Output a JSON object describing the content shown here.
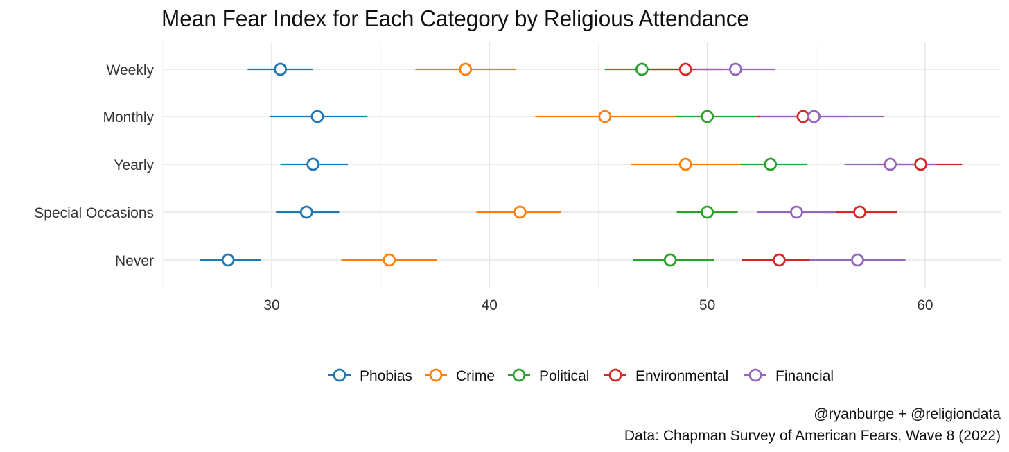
{
  "chart_data": {
    "type": "scatter",
    "subtype": "dot-with-error-bars",
    "title": "Mean Fear Index for Each Category by Religious Attendance",
    "xlabel": "",
    "ylabel": "",
    "xlim": [
      25,
      63.5
    ],
    "xticks": [
      30,
      40,
      50,
      60
    ],
    "grid": true,
    "legend_position": "bottom",
    "categories": [
      "Weekly",
      "Monthly",
      "Yearly",
      "Special Occasions",
      "Never"
    ],
    "series": [
      {
        "name": "Phobias",
        "color": "#1f77b4",
        "values": [
          30.4,
          32.1,
          31.9,
          31.6,
          28.0
        ],
        "ci": [
          [
            28.9,
            31.9
          ],
          [
            29.9,
            34.4
          ],
          [
            30.4,
            33.5
          ],
          [
            30.2,
            33.1
          ],
          [
            26.7,
            29.5
          ]
        ]
      },
      {
        "name": "Crime",
        "color": "#ff7f0e",
        "values": [
          38.9,
          45.3,
          49.0,
          41.4,
          35.4
        ],
        "ci": [
          [
            36.6,
            41.2
          ],
          [
            42.1,
            48.5
          ],
          [
            46.5,
            51.5
          ],
          [
            39.4,
            43.3
          ],
          [
            33.2,
            37.6
          ]
        ]
      },
      {
        "name": "Political",
        "color": "#2ca02c",
        "values": [
          47.0,
          50.0,
          52.9,
          50.0,
          48.3
        ],
        "ci": [
          [
            45.3,
            48.7
          ],
          [
            48.5,
            52.4
          ],
          [
            51.5,
            54.6
          ],
          [
            48.6,
            51.4
          ],
          [
            46.6,
            50.3
          ]
        ]
      },
      {
        "name": "Environmental",
        "color": "#d62728",
        "values": [
          49.0,
          54.4,
          59.8,
          57.0,
          53.3
        ],
        "ci": [
          [
            47.3,
            50.7
          ],
          [
            52.3,
            56.5
          ],
          [
            57.9,
            61.7
          ],
          [
            55.3,
            58.7
          ],
          [
            51.6,
            55.0
          ]
        ]
      },
      {
        "name": "Financial",
        "color": "#9467bd",
        "values": [
          51.3,
          54.9,
          58.4,
          54.1,
          56.9
        ],
        "ci": [
          [
            49.5,
            53.1
          ],
          [
            52.4,
            58.1
          ],
          [
            56.3,
            60.5
          ],
          [
            52.3,
            55.9
          ],
          [
            54.7,
            59.1
          ]
        ]
      }
    ],
    "caption": [
      "@ryanburge + @religiondata",
      "Data: Chapman Survey of American Fears, Wave 8 (2022)"
    ]
  }
}
